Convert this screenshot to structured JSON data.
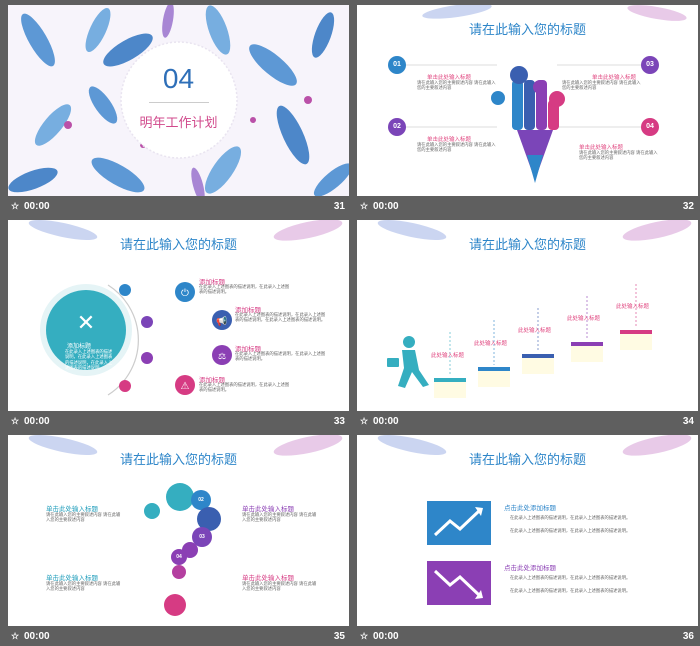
{
  "slides": [
    {
      "number": "31",
      "time": "00:00",
      "big_number": "04",
      "subtitle": "明年工作计划"
    },
    {
      "number": "32",
      "time": "00:00",
      "title": "请在此输入您的标题",
      "badges": [
        "01",
        "02",
        "03",
        "04"
      ],
      "items": [
        {
          "heading": "单击此处输入标题",
          "text": "请在此输入您的主要叙述内容 请在此输入您的主要叙述内容"
        },
        {
          "heading": "单击此处输入标题",
          "text": "请在此输入您的主要叙述内容 请在此输入您的主要叙述内容"
        },
        {
          "heading": "单击此处输入标题",
          "text": "请在此输入您的主要叙述内容 请在此输入您的主要叙述内容"
        },
        {
          "heading": "单击此处输入标题",
          "text": "请在此输入您的主要叙述内容 请在此输入您的主要叙述内容"
        }
      ]
    },
    {
      "number": "33",
      "time": "00:00",
      "title": "请在此输入您的标题",
      "center_label": "添加标题",
      "center_text": "在此录入上述图表的描述说明，在此录入上述图表的描述说明，在此录入上述图表的描述说明。",
      "items": [
        {
          "heading": "添加标题",
          "text": "在此录入上述图表的描述说明，在此录入上述图表的描述说明。"
        },
        {
          "heading": "添加标题",
          "text": "在此录入上述图表的描述说明，在此录入上述图表的描述说明，在此录入上述图表的描述说明。"
        },
        {
          "heading": "添加标题",
          "text": "在此录入上述图表的描述说明，在此录入上述图表的描述说明。"
        },
        {
          "heading": "添加标题",
          "text": "在此录入上述图表的描述说明，在此录入上述图表的描述说明。"
        }
      ]
    },
    {
      "number": "34",
      "time": "00:00",
      "title": "请在此输入您的标题",
      "steps": [
        "此处输入标题",
        "此处输入标题",
        "此处输入标题",
        "此处输入标题",
        "此处输入标题"
      ]
    },
    {
      "number": "35",
      "time": "00:00",
      "title": "请在此输入您的标题",
      "badges": [
        "01",
        "02",
        "03",
        "04"
      ],
      "items": [
        {
          "heading": "单击此处输入标题",
          "text": "请在此输入您的主要叙述内容 请在此输入您的主要叙述内容"
        },
        {
          "heading": "单击此处输入标题",
          "text": "请在此输入您的主要叙述内容 请在此输入您的主要叙述内容"
        },
        {
          "heading": "单击此处输入标题",
          "text": "请在此输入您的主要叙述内容 请在此输入您的主要叙述内容"
        },
        {
          "heading": "单击此处输入标题",
          "text": "请在此输入您的主要叙述内容 请在此输入您的主要叙述内容"
        }
      ]
    },
    {
      "number": "36",
      "time": "00:00",
      "title": "请在此输入您的标题",
      "blocks": [
        {
          "heading": "点击此处添加标题",
          "bullets": [
            "在此录入上述图表的描述说明，在此录入上述图表的描述说明。",
            "在此录入上述图表的描述说明，在此录入上述图表的描述说明。"
          ]
        },
        {
          "heading": "点击此处添加标题",
          "bullets": [
            "在此录入上述图表的描述说明，在此录入上述图表的描述说明。",
            "在此录入上述图表的描述说明，在此录入上述图表的描述说明。"
          ]
        }
      ]
    }
  ],
  "colors": {
    "blue": "#2e86c9",
    "purple": "#7b45b8",
    "magenta": "#d63b83",
    "teal": "#35aec0"
  }
}
